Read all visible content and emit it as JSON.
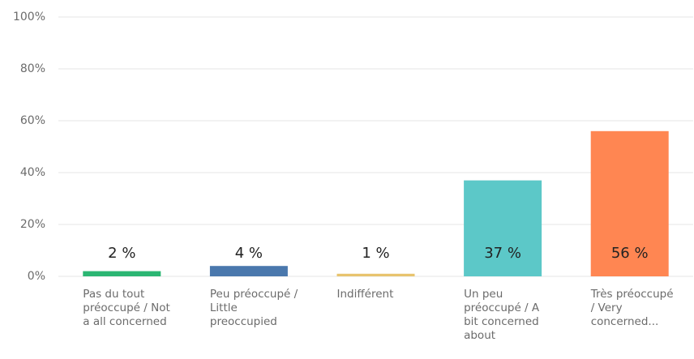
{
  "chart_data": {
    "type": "bar",
    "categories": [
      "Pas du tout préoccupé / Not a all concerned",
      "Peu préoccupé / Little preoccupied",
      "Indifférent",
      "Un peu préoccupé / A bit concerned about",
      "Très préoccupé / Very concerned..."
    ],
    "values": [
      2,
      4,
      1,
      37,
      56
    ],
    "value_labels": [
      "2 %",
      "4 %",
      "1 %",
      "37 %",
      "56 %"
    ],
    "colors": [
      "#2bb673",
      "#4a78ad",
      "#e8c46e",
      "#5cc8c8",
      "#ff8652"
    ],
    "ylim": [
      0,
      100
    ],
    "yticks": [
      {
        "value": 0,
        "label": "0%"
      },
      {
        "value": 20,
        "label": "20%"
      },
      {
        "value": 40,
        "label": "40%"
      },
      {
        "value": 60,
        "label": "60%"
      },
      {
        "value": 80,
        "label": "80%"
      },
      {
        "value": 100,
        "label": "100%"
      }
    ],
    "grid": true
  }
}
